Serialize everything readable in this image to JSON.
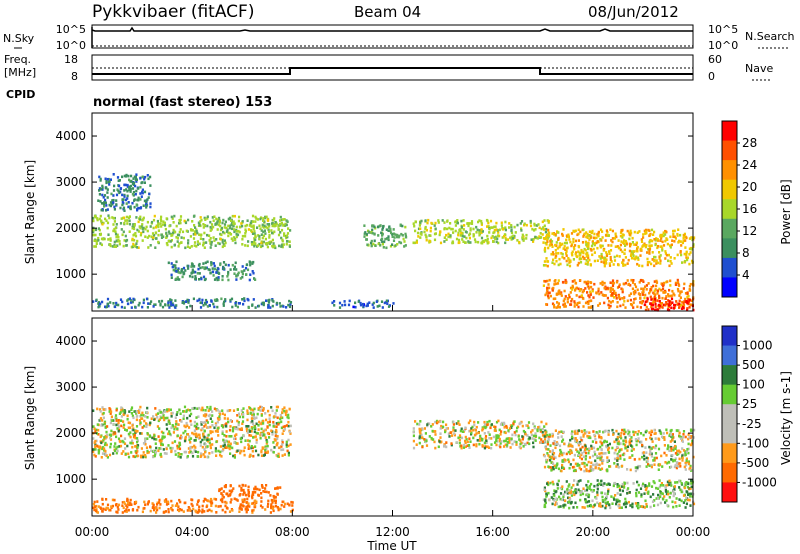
{
  "header": {
    "station": "Pykkvibaer (fitACF)",
    "beam": "Beam 04",
    "date": "08/Jun/2012"
  },
  "noise_panel": {
    "left_label": "N.Sky",
    "left_ticks": [
      "10^5",
      "10^0"
    ],
    "right_label": "N.Search",
    "right_ticks": [
      "10^5",
      "10^0"
    ]
  },
  "freq_panel": {
    "left_label_1": "Freq.",
    "left_label_2": "[MHz]",
    "left_ticks": [
      "18",
      "8"
    ],
    "right_label": "Nave",
    "right_ticks": [
      "60",
      "0"
    ],
    "cpid_label": "CPID",
    "cpid_text": "normal (fast stereo) 153"
  },
  "colors": {
    "power_scale": [
      "#0000ff",
      "#1f4fd0",
      "#3b8f5f",
      "#5aa860",
      "#a8d72a",
      "#f0c800",
      "#ff9000",
      "#ff5000",
      "#ff0000"
    ],
    "velocity_scale": [
      "#2030c8",
      "#3f6fd8",
      "#2d7c3a",
      "#66cc33",
      "#bfbfb8",
      "#bfbfb8",
      "#ff9a1a",
      "#ff6a00",
      "#ff1010"
    ]
  },
  "chart_data": [
    {
      "type": "heatmap",
      "ylabel": "Slant Range [km]",
      "xlabel": "Time UT",
      "x_ticks": [
        "00:00",
        "04:00",
        "08:00",
        "12:00",
        "16:00",
        "20:00",
        "00:00"
      ],
      "y_ticks": [
        "1000",
        "2000",
        "3000",
        "4000"
      ],
      "ylim": [
        200,
        4500
      ],
      "xlim": [
        0,
        24
      ],
      "colorbar_label": "Power [dB]",
      "colorbar_ticks": [
        "4",
        "8",
        "12",
        "16",
        "20",
        "24",
        "28"
      ],
      "clim": [
        0,
        32
      ],
      "echo_bands": [
        {
          "t0": 0.0,
          "t1": 7.9,
          "r_lo": 1600,
          "r_hi": 2300,
          "level": 15
        },
        {
          "t0": 0.2,
          "t1": 2.3,
          "r_lo": 2400,
          "r_hi": 3200,
          "level": 8
        },
        {
          "t0": 3.0,
          "t1": 6.5,
          "r_lo": 900,
          "r_hi": 1300,
          "level": 9
        },
        {
          "t0": 0.0,
          "t1": 8.0,
          "r_lo": 300,
          "r_hi": 500,
          "level": 8
        },
        {
          "t0": 9.5,
          "t1": 12.0,
          "r_lo": 300,
          "r_hi": 450,
          "level": 6
        },
        {
          "t0": 10.8,
          "t1": 12.6,
          "r_lo": 1600,
          "r_hi": 2100,
          "level": 12
        },
        {
          "t0": 12.8,
          "t1": 18.2,
          "r_lo": 1700,
          "r_hi": 2200,
          "level": 16
        },
        {
          "t0": 18.0,
          "t1": 24.0,
          "r_lo": 1200,
          "r_hi": 2000,
          "level": 20
        },
        {
          "t0": 18.0,
          "t1": 24.0,
          "r_lo": 300,
          "r_hi": 900,
          "level": 24
        },
        {
          "t0": 22.0,
          "t1": 24.0,
          "r_lo": 200,
          "r_hi": 500,
          "level": 30
        }
      ]
    },
    {
      "type": "heatmap",
      "ylabel": "Slant Range [km]",
      "xlabel": "Time UT",
      "x_ticks": [
        "00:00",
        "04:00",
        "08:00",
        "12:00",
        "16:00",
        "20:00",
        "00:00"
      ],
      "y_ticks": [
        "1000",
        "2000",
        "3000",
        "4000"
      ],
      "ylim": [
        200,
        4500
      ],
      "xlim": [
        0,
        24
      ],
      "colorbar_label": "Velocity [m s-1]",
      "colorbar_ticks": [
        "1000",
        "500",
        "100",
        "25",
        "-25",
        "-100",
        "-500",
        "-1000"
      ],
      "echo_bands": [
        {
          "t0": 0.0,
          "t1": 7.9,
          "r_lo": 1500,
          "r_hi": 2600,
          "level": 0
        },
        {
          "t0": 5.0,
          "t1": 7.5,
          "r_lo": 600,
          "r_hi": 900,
          "level": -300
        },
        {
          "t0": 0.0,
          "t1": 8.0,
          "r_lo": 300,
          "r_hi": 600,
          "level": -150
        },
        {
          "t0": 12.8,
          "t1": 18.2,
          "r_lo": 1700,
          "r_hi": 2300,
          "level": 0
        },
        {
          "t0": 18.0,
          "t1": 24.0,
          "r_lo": 1200,
          "r_hi": 2100,
          "level": 0
        },
        {
          "t0": 18.0,
          "t1": 24.0,
          "r_lo": 400,
          "r_hi": 1000,
          "level": 60
        }
      ]
    }
  ]
}
